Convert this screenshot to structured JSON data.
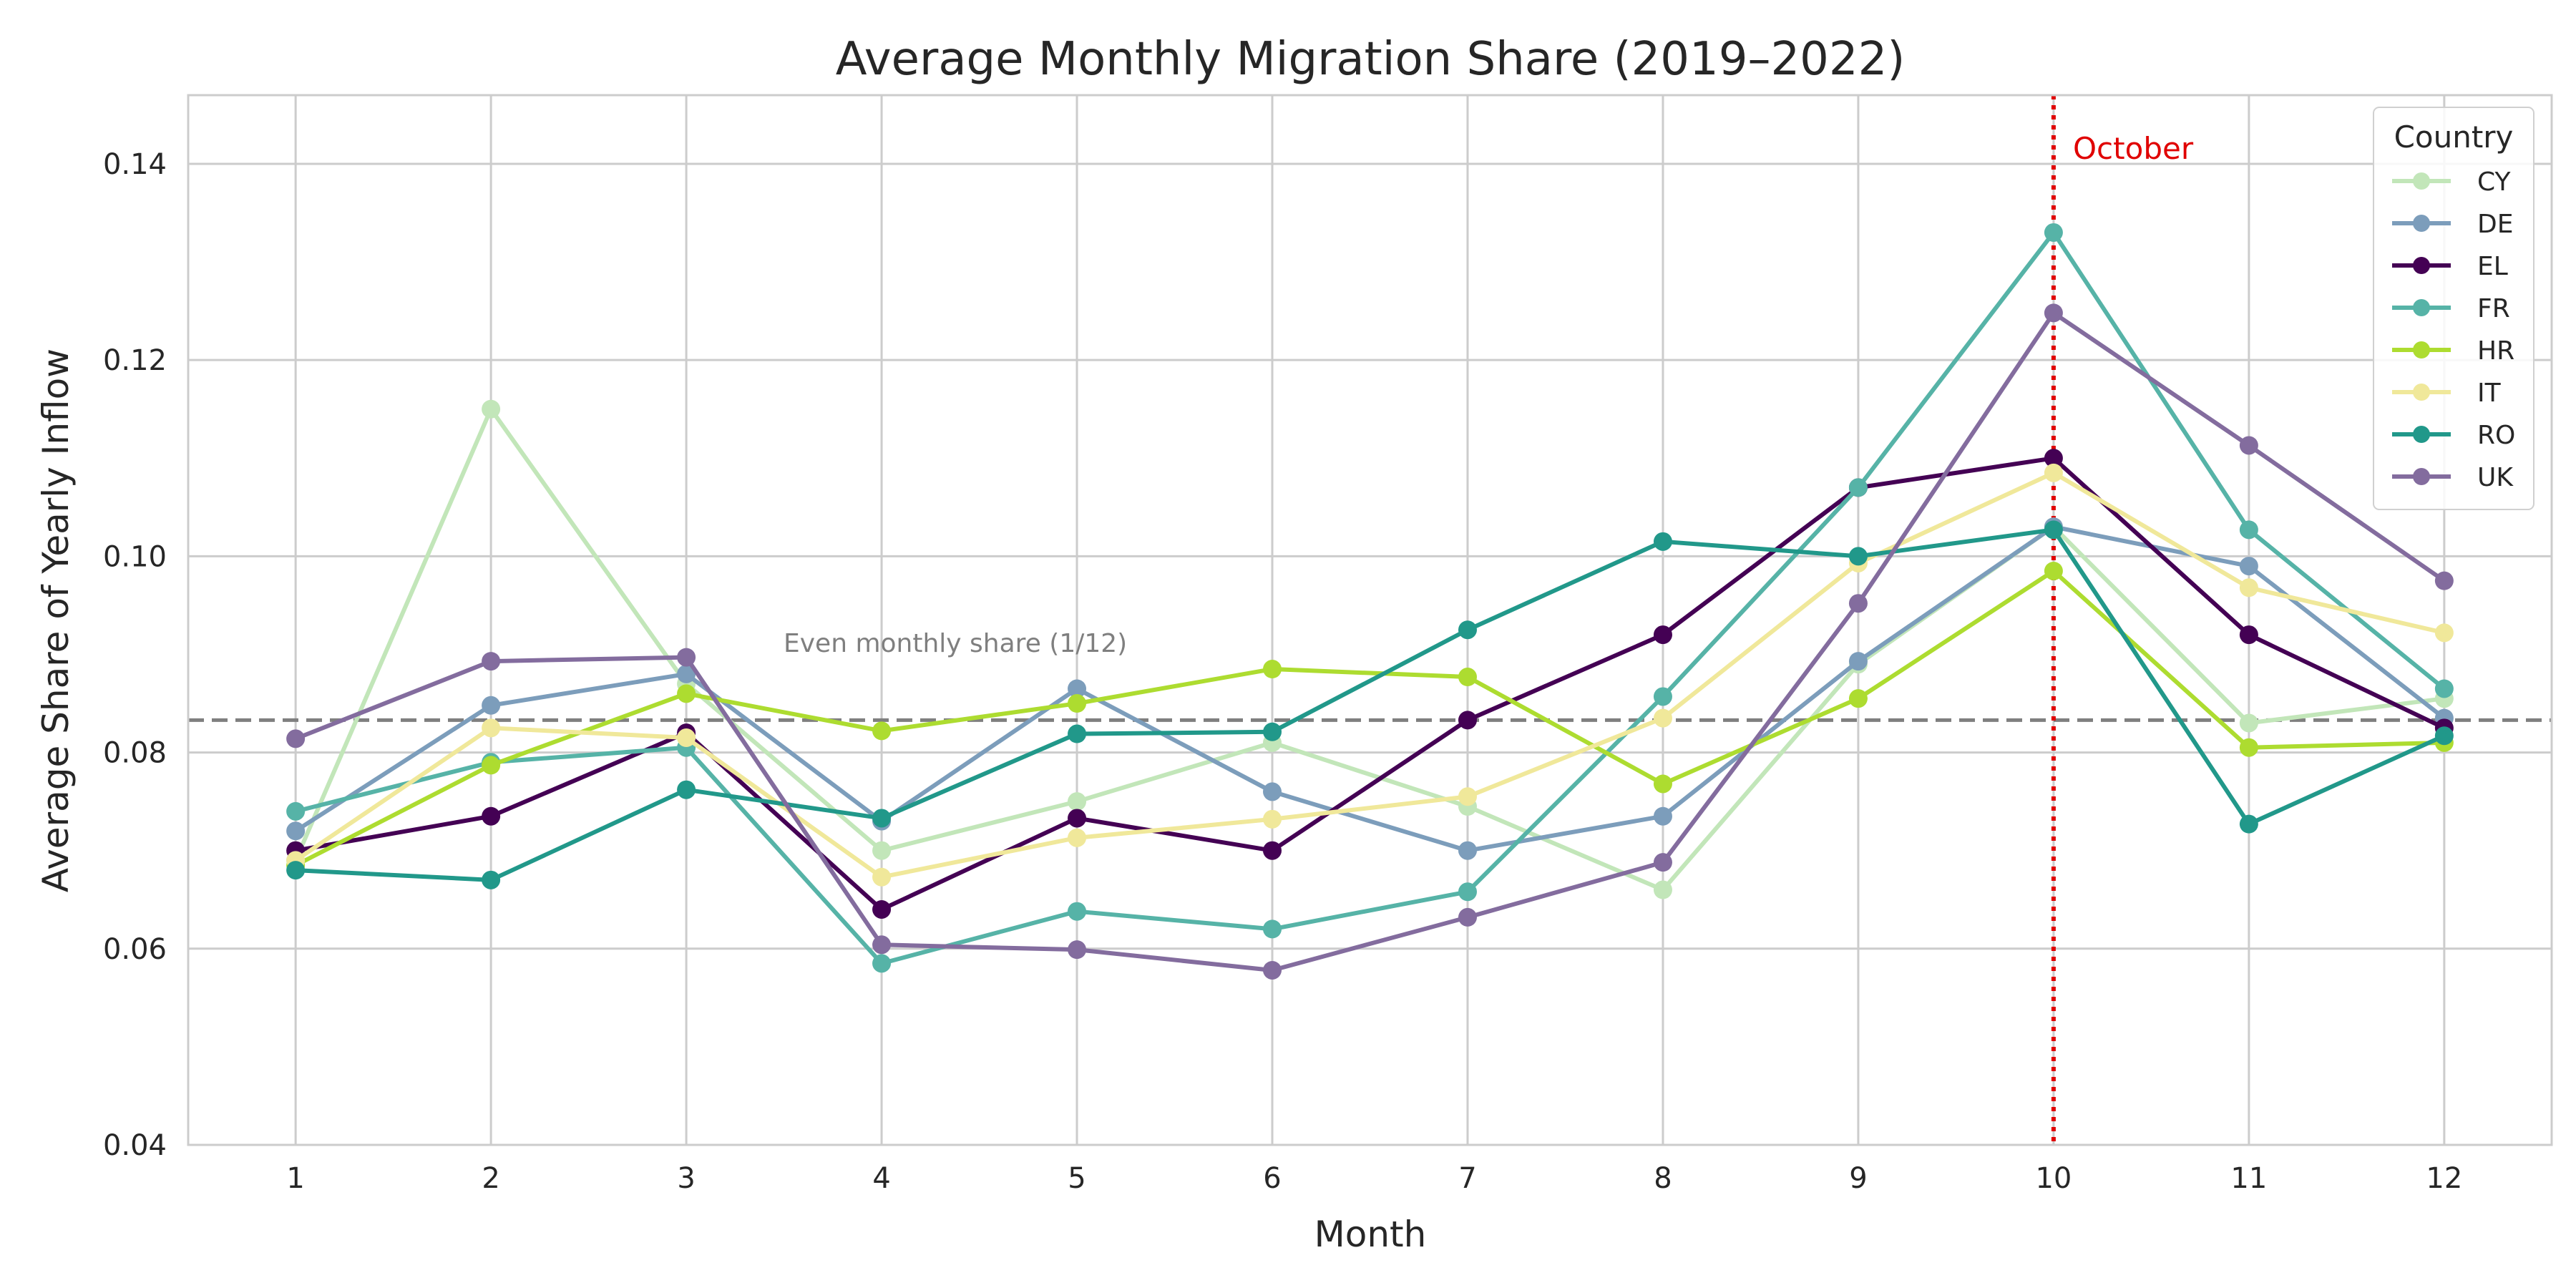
{
  "chart_data": {
    "type": "line",
    "title": "Average Monthly Migration Share (2019–2022)",
    "xlabel": "Month",
    "ylabel": "Average Share of Yearly Inflow",
    "x": [
      1,
      2,
      3,
      4,
      5,
      6,
      7,
      8,
      9,
      10,
      11,
      12
    ],
    "x_tick_labels": [
      "1",
      "2",
      "3",
      "4",
      "5",
      "6",
      "7",
      "8",
      "9",
      "10",
      "11",
      "12"
    ],
    "ylim": [
      0.04,
      0.147
    ],
    "y_ticks": [
      0.04,
      0.06,
      0.08,
      0.1,
      0.12,
      0.14
    ],
    "y_tick_labels": [
      "0.04",
      "0.06",
      "0.08",
      "0.10",
      "0.12",
      "0.14"
    ],
    "grid": true,
    "legend": {
      "title": "Country",
      "placement": "top-right"
    },
    "series": [
      {
        "name": "CY",
        "color": "#c2e6b9",
        "values": [
          0.069,
          0.115,
          0.087,
          0.07,
          0.075,
          0.081,
          0.0745,
          0.066,
          0.089,
          0.103,
          0.083,
          0.0855
        ]
      },
      {
        "name": "DE",
        "color": "#7c9dbb",
        "values": [
          0.072,
          0.0848,
          0.088,
          0.073,
          0.0865,
          0.076,
          0.07,
          0.0735,
          0.0893,
          0.103,
          0.099,
          0.0835
        ]
      },
      {
        "name": "EL",
        "color": "#440154",
        "values": [
          0.07,
          0.0735,
          0.082,
          0.064,
          0.0733,
          0.07,
          0.0833,
          0.092,
          0.107,
          0.11,
          0.092,
          0.0825
        ]
      },
      {
        "name": "FR",
        "color": "#56b3a7",
        "values": [
          0.074,
          0.079,
          0.0805,
          0.0585,
          0.0638,
          0.062,
          0.0658,
          0.0857,
          0.107,
          0.133,
          0.1027,
          0.0865
        ]
      },
      {
        "name": "HR",
        "color": "#addc30",
        "values": [
          0.0685,
          0.0787,
          0.086,
          0.0822,
          0.085,
          0.0885,
          0.0877,
          0.0768,
          0.0855,
          0.0985,
          0.0805,
          0.081
        ]
      },
      {
        "name": "IT",
        "color": "#f0e89a",
        "values": [
          0.069,
          0.0825,
          0.0815,
          0.0673,
          0.0713,
          0.0732,
          0.0755,
          0.0835,
          0.0993,
          0.1085,
          0.0968,
          0.0922
        ]
      },
      {
        "name": "RO",
        "color": "#21988a",
        "values": [
          0.068,
          0.067,
          0.0762,
          0.0733,
          0.0819,
          0.0821,
          0.0925,
          0.1015,
          0.1,
          0.1027,
          0.0727,
          0.0817
        ]
      },
      {
        "name": "UK",
        "color": "#836c9e",
        "values": [
          0.0814,
          0.0893,
          0.0897,
          0.0604,
          0.0599,
          0.0578,
          0.0632,
          0.0688,
          0.0952,
          0.1248,
          0.1113,
          0.0975
        ]
      }
    ],
    "reference_lines": [
      {
        "orientation": "horizontal",
        "value": 0.0833,
        "style": "dashed",
        "color": "#7f7f7f",
        "label": "Even monthly share (1/12)"
      },
      {
        "orientation": "vertical",
        "value": 10,
        "style": "dotted",
        "color": "#e00000",
        "label": "October"
      }
    ]
  }
}
